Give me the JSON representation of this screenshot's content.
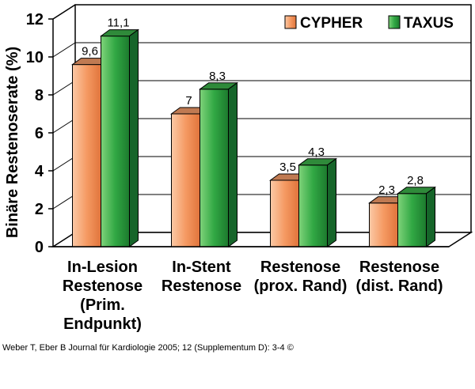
{
  "chart_data": {
    "type": "bar",
    "ylabel": "Binäre Restenoserate (%)",
    "ylim": [
      0,
      12
    ],
    "y_ticks": [
      "0",
      "2",
      "4",
      "6",
      "8",
      "10",
      "12"
    ],
    "grid": true,
    "legend_position": "top-right",
    "categories": [
      [
        "In-Lesion",
        "Restenose",
        "(Prim.",
        "Endpunkt)"
      ],
      [
        "In-Stent",
        "Restenose"
      ],
      [
        "Restenose",
        "(prox. Rand)"
      ],
      [
        "Restenose",
        "(dist. Rand)"
      ]
    ],
    "series": [
      {
        "name": "CYPHER",
        "values": [
          9.6,
          7,
          3.5,
          2.3
        ],
        "labels": [
          "9,6",
          "7",
          "3,5",
          "2,3"
        ],
        "color": "#f08a50"
      },
      {
        "name": "TAXUS",
        "values": [
          11.1,
          8.3,
          4.3,
          2.8
        ],
        "labels": [
          "11,1",
          "8,3",
          "4,3",
          "2,8"
        ],
        "color": "#2ea043"
      }
    ]
  },
  "source": "Weber T, Eber B Journal für Kardiologie 2005; 12 (Supplementum D): 3-4 ©"
}
